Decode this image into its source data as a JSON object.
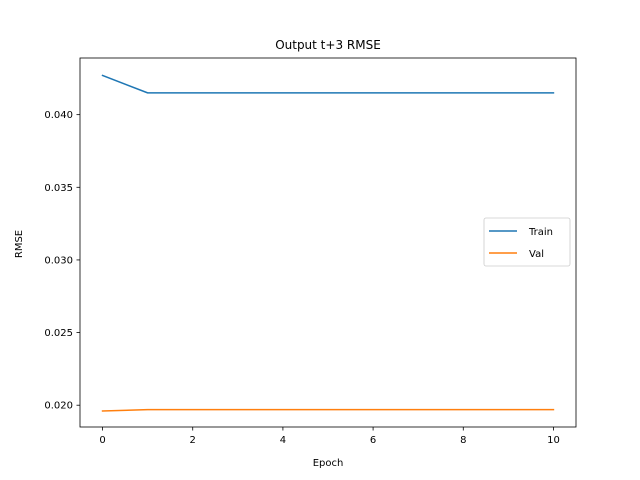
{
  "chart_data": {
    "type": "line",
    "title": "Output t+3 RMSE",
    "xlabel": "Epoch",
    "ylabel": "RMSE",
    "xlim": [
      -0.5,
      10.5
    ],
    "ylim": [
      0.0185,
      0.0439
    ],
    "xticks": [
      0,
      2,
      4,
      6,
      8,
      10
    ],
    "xtick_labels": [
      "0",
      "2",
      "4",
      "6",
      "8",
      "10"
    ],
    "yticks": [
      0.02,
      0.025,
      0.03,
      0.035,
      0.04
    ],
    "ytick_labels": [
      "0.020",
      "0.025",
      "0.030",
      "0.035",
      "0.040"
    ],
    "grid": false,
    "legend_position": "center-right",
    "x": [
      0,
      1,
      2,
      3,
      4,
      5,
      6,
      7,
      8,
      9,
      10
    ],
    "series": [
      {
        "name": "Train",
        "color": "#1f77b4",
        "values": [
          0.0427,
          0.0415,
          0.0415,
          0.0415,
          0.0415,
          0.0415,
          0.0415,
          0.0415,
          0.0415,
          0.0415,
          0.0415
        ]
      },
      {
        "name": "Val",
        "color": "#ff7f0e",
        "values": [
          0.0196,
          0.0197,
          0.0197,
          0.0197,
          0.0197,
          0.0197,
          0.0197,
          0.0197,
          0.0197,
          0.0197,
          0.0197
        ]
      }
    ]
  }
}
